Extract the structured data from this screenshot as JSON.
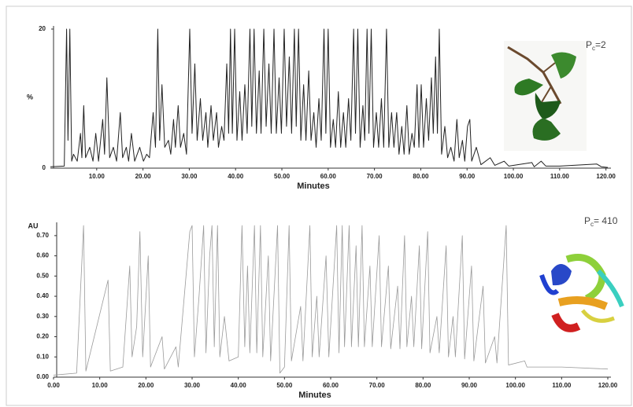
{
  "chart_data": [
    {
      "type": "line",
      "xlabel": "Minutes",
      "ylabel": "%",
      "annotation": {
        "symbol": "P",
        "subscript": "c",
        "text": "=2"
      },
      "xlim": [
        0,
        120.4
      ],
      "ylim": [
        0,
        20
      ],
      "xticks": [
        {
          "value": 10,
          "label": "10.00"
        },
        {
          "value": 20,
          "label": "20.00"
        },
        {
          "value": 30,
          "label": "30.00"
        },
        {
          "value": 40,
          "label": "40.00"
        },
        {
          "value": 50,
          "label": "50.00"
        },
        {
          "value": 60,
          "label": "60.00"
        },
        {
          "value": 70,
          "label": "70.00"
        },
        {
          "value": 80,
          "label": "80.00"
        },
        {
          "value": 90,
          "label": "90.00"
        },
        {
          "value": 100,
          "label": "100.00"
        },
        {
          "value": 110,
          "label": "110.00"
        },
        {
          "value": 120,
          "label": "120.00"
        }
      ],
      "yticks": [
        0,
        20
      ],
      "x": [
        0,
        3,
        3.5,
        3.8,
        4.2,
        4.6,
        5,
        5.8,
        6.5,
        6.8,
        7.2,
        7.6,
        8.5,
        9.2,
        9.8,
        10.4,
        11.3,
        11.7,
        12.2,
        12.8,
        13.6,
        14.3,
        15.1,
        15.6,
        16.4,
        16.9,
        17.5,
        18.2,
        19.3,
        20.1,
        20.8,
        21.4,
        22.2,
        22.7,
        23.2,
        23.6,
        24.1,
        24.7,
        25.5,
        26,
        26.6,
        27,
        27.6,
        28.1,
        28.8,
        29.4,
        30.1,
        30.6,
        31.2,
        31.7,
        32.4,
        32.9,
        33.6,
        34,
        34.7,
        35.2,
        35.9,
        36.3,
        37,
        37.5,
        38.1,
        38.5,
        38.9,
        39.3,
        39.8,
        40.3,
        40.9,
        41.4,
        42,
        42.5,
        43.1,
        43.5,
        44,
        44.5,
        45.1,
        45.5,
        46.1,
        46.6,
        47.2,
        47.7,
        48.3,
        48.8,
        49.4,
        49.9,
        50.5,
        51,
        51.6,
        52.1,
        52.7,
        53.1,
        53.6,
        54.1,
        54.7,
        55.2,
        55.8,
        56.3,
        56.9,
        57.4,
        58,
        58.5,
        59.1,
        59.5,
        60,
        60.5,
        61.1,
        61.6,
        62.2,
        62.7,
        63.3,
        63.8,
        64.4,
        64.9,
        65.5,
        65.9,
        66.4,
        66.9,
        67.5,
        67.9,
        68.4,
        68.8,
        69.3,
        69.8,
        70.4,
        70.9,
        71.5,
        72,
        72.6,
        73.1,
        73.7,
        74.2,
        74.8,
        75.3,
        75.9,
        76.4,
        77,
        77.5,
        78.1,
        78.6,
        79.2,
        79.6,
        80.1,
        80.6,
        81.2,
        81.7,
        82.3,
        82.7,
        83.2,
        83.6,
        84,
        84.5,
        85.2,
        85.8,
        86.5,
        87.2,
        87.8,
        88.3,
        89,
        89.5,
        90.1,
        90.6,
        91,
        92,
        93,
        95,
        96,
        98,
        99,
        104,
        104.5,
        106,
        107,
        110,
        118,
        119,
        120.4
      ],
      "series": [
        {
          "color": "#222222",
          "values": [
            0.2,
            0.3,
            20,
            4,
            20,
            1,
            2,
            1,
            5,
            1.5,
            9,
            1.5,
            3,
            1,
            5,
            1,
            7,
            2,
            13,
            1.5,
            3,
            1,
            8,
            1.5,
            3,
            1,
            5,
            1,
            3,
            1,
            2,
            1.5,
            8,
            3,
            20,
            4,
            12,
            3,
            4,
            2,
            7,
            3,
            9,
            3,
            5,
            2,
            20,
            5,
            15,
            4,
            10,
            4,
            8,
            3,
            9,
            4,
            8,
            3,
            6,
            4,
            15,
            5,
            20,
            5,
            20,
            4,
            11,
            4,
            12,
            5,
            20,
            6,
            20,
            5,
            14,
            5,
            20,
            6,
            15,
            5,
            20,
            5,
            13,
            5,
            20,
            6,
            16,
            5,
            20,
            6,
            20,
            4,
            12,
            4,
            14,
            4,
            8,
            3,
            10,
            4,
            20,
            5,
            20,
            3,
            7,
            3,
            11,
            3,
            8,
            3,
            10,
            4,
            20,
            5,
            20,
            3,
            9,
            4,
            20,
            5,
            20,
            3,
            8,
            3,
            10,
            3,
            20,
            3,
            8,
            3,
            8,
            2,
            6,
            2,
            9,
            2,
            5,
            3,
            12,
            3,
            12,
            3,
            10,
            4,
            13,
            5,
            16,
            5,
            20,
            2,
            6,
            1.5,
            3,
            1,
            7,
            1.5,
            4,
            1,
            6,
            7,
            1,
            3,
            0.5,
            1.5,
            0.4,
            1,
            0.3,
            0.8,
            0.2,
            1,
            0.3,
            0.3,
            0.6,
            0.2,
            0.1
          ]
        }
      ]
    },
    {
      "type": "line",
      "xlabel": "Minutes",
      "ylabel": "AU",
      "annotation": {
        "symbol": "P",
        "subscript": "c",
        "text": "= 410"
      },
      "xlim": [
        0,
        120
      ],
      "ylim": [
        0,
        0.75
      ],
      "xticks": [
        {
          "value": 0,
          "label": "0.00"
        },
        {
          "value": 10,
          "label": "10.00"
        },
        {
          "value": 20,
          "label": "20.00"
        },
        {
          "value": 30,
          "label": "30.00"
        },
        {
          "value": 40,
          "label": "40.00"
        },
        {
          "value": 50,
          "label": "50.00"
        },
        {
          "value": 60,
          "label": "60.00"
        },
        {
          "value": 70,
          "label": "70.00"
        },
        {
          "value": 80,
          "label": "80.00"
        },
        {
          "value": 90,
          "label": "90.00"
        },
        {
          "value": 100,
          "label": "100.00"
        },
        {
          "value": 110,
          "label": "110.00"
        },
        {
          "value": 120,
          "label": "120.00"
        }
      ],
      "yticks": [
        {
          "value": 0,
          "label": "0.00"
        },
        {
          "value": 0.1,
          "label": "0.10"
        },
        {
          "value": 0.2,
          "label": "0.20"
        },
        {
          "value": 0.3,
          "label": "0.30"
        },
        {
          "value": 0.4,
          "label": "0.40"
        },
        {
          "value": 0.5,
          "label": "0.50"
        },
        {
          "value": 0.6,
          "label": "0.60"
        },
        {
          "value": 0.7,
          "label": "0.70"
        }
      ],
      "x": [
        0,
        5,
        6.5,
        7,
        11.8,
        12.3,
        15,
        16.5,
        17,
        18,
        18.7,
        19.3,
        20.5,
        21,
        23.5,
        24,
        26.5,
        27,
        29.5,
        30,
        30.5,
        31.5,
        32.5,
        33,
        33.8,
        34.3,
        34.8,
        35.5,
        36,
        37,
        38,
        40,
        40.8,
        41.4,
        42,
        42.5,
        43.5,
        44,
        44.8,
        45.3,
        46.5,
        47,
        48.5,
        49,
        50,
        51,
        51.5,
        53.5,
        54,
        55.5,
        56,
        57,
        57.5,
        59,
        59.6,
        61.3,
        61.8,
        62.5,
        63,
        64,
        64.5,
        65.5,
        66,
        66.8,
        67.3,
        68.5,
        69,
        70.5,
        71,
        72.5,
        73,
        74.5,
        75,
        76,
        76.5,
        77.5,
        78,
        79.2,
        79.7,
        81,
        81.5,
        83,
        83.5,
        85,
        85.5,
        86.5,
        87,
        88.5,
        89,
        90.5,
        91,
        93,
        93.5,
        95.5,
        96,
        98,
        98.5,
        102,
        102.5,
        107,
        110,
        120
      ],
      "series": [
        {
          "color": "#9a9a9a",
          "values": [
            0.01,
            0.02,
            0.75,
            0.03,
            0.48,
            0.03,
            0.05,
            0.55,
            0.1,
            0.25,
            0.72,
            0.1,
            0.6,
            0.05,
            0.2,
            0.04,
            0.15,
            0.05,
            0.72,
            0.75,
            0.1,
            0.4,
            0.75,
            0.12,
            0.6,
            0.75,
            0.15,
            0.75,
            0.1,
            0.3,
            0.08,
            0.1,
            0.75,
            0.15,
            0.55,
            0.12,
            0.75,
            0.12,
            0.75,
            0.1,
            0.6,
            0.08,
            0.75,
            0.02,
            0.05,
            0.75,
            0.08,
            0.35,
            0.08,
            0.75,
            0.1,
            0.4,
            0.1,
            0.6,
            0.1,
            0.75,
            0.12,
            0.75,
            0.15,
            0.75,
            0.15,
            0.65,
            0.15,
            0.75,
            0.15,
            0.55,
            0.15,
            0.7,
            0.15,
            0.55,
            0.14,
            0.45,
            0.14,
            0.7,
            0.15,
            0.4,
            0.15,
            0.65,
            0.14,
            0.72,
            0.12,
            0.3,
            0.12,
            0.65,
            0.1,
            0.3,
            0.1,
            0.7,
            0.09,
            0.55,
            0.08,
            0.45,
            0.07,
            0.2,
            0.07,
            0.75,
            0.06,
            0.08,
            0.05,
            0.05,
            0.05,
            0.04
          ]
        }
      ]
    }
  ]
}
